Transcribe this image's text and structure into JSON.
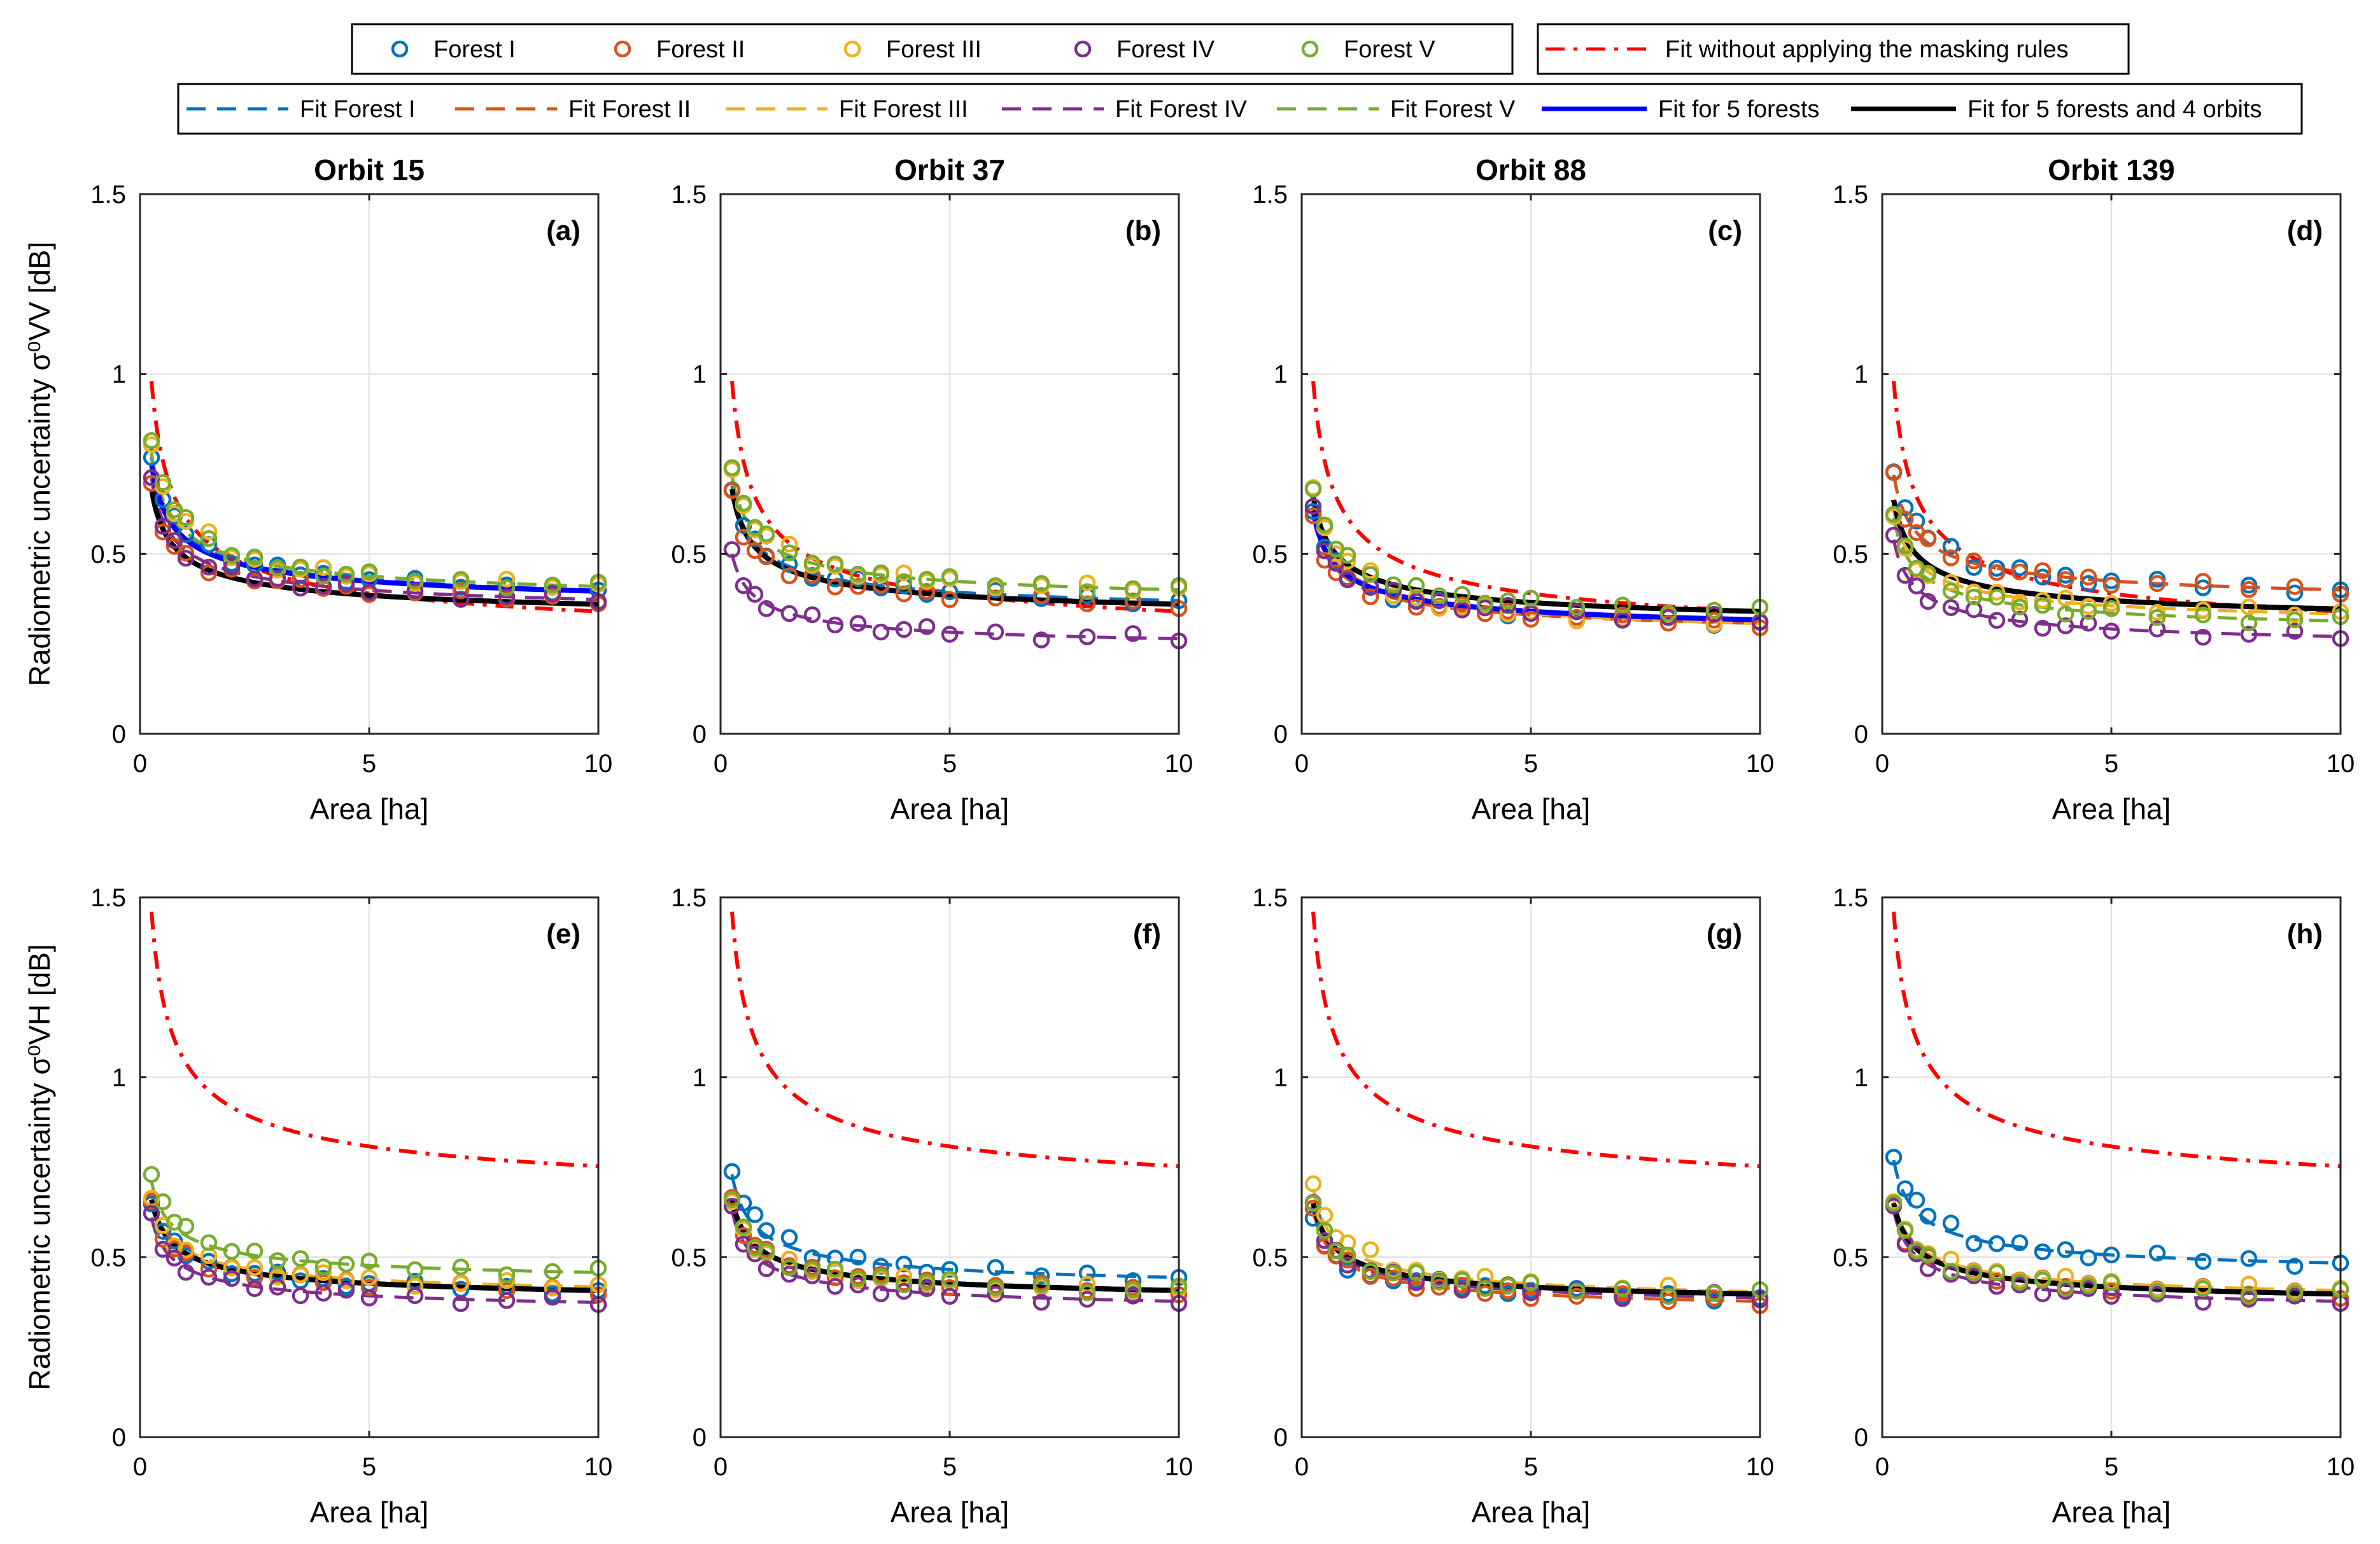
{
  "figure": {
    "legend_row1": [
      {
        "label": "Forest I",
        "kind": "marker",
        "color": "#0072BD"
      },
      {
        "label": "Forest II",
        "kind": "marker",
        "color": "#D95319"
      },
      {
        "label": "Forest III",
        "kind": "marker",
        "color": "#EDB120"
      },
      {
        "label": "Forest IV",
        "kind": "marker",
        "color": "#7E2F8E"
      },
      {
        "label": "Forest V",
        "kind": "marker",
        "color": "#77AC30"
      }
    ],
    "legend_row1b": [
      {
        "label": "Fit without applying the masking rules",
        "kind": "dashdot",
        "color": "#FF0000"
      }
    ],
    "legend_row2": [
      {
        "label": "Fit Forest I",
        "kind": "dash",
        "color": "#0072BD"
      },
      {
        "label": "Fit Forest II",
        "kind": "dash",
        "color": "#D95319"
      },
      {
        "label": "Fit Forest III",
        "kind": "dash",
        "color": "#EDB120"
      },
      {
        "label": "Fit Forest IV",
        "kind": "dash",
        "color": "#7E2F8E"
      },
      {
        "label": "Fit Forest V",
        "kind": "dash",
        "color": "#77AC30"
      },
      {
        "label": "Fit for 5 forests",
        "kind": "solid",
        "color": "#0000FF"
      },
      {
        "label": "Fit for 5 forests and 4 orbits",
        "kind": "solid",
        "color": "#000000"
      }
    ]
  },
  "chart_data": [
    {
      "type": "line",
      "panel_label": "(a)",
      "title": "Orbit 15",
      "xlabel": "Area [ha]",
      "ylabel": "Radiometric uncertainty  σ⁰VV [dB]",
      "xlim": [
        0,
        10
      ],
      "ylim": [
        0,
        1.5
      ],
      "xticks": [
        "0",
        "5",
        "10"
      ],
      "yticks": [
        "0",
        "0.5",
        "1",
        "1.5"
      ],
      "grid": true,
      "fits": {
        "nomask": [
          0.38,
          0.22
        ],
        "f1": [
          0.22,
          0.33
        ],
        "f2": [
          0.2,
          0.31
        ],
        "f3": [
          0.22,
          0.34
        ],
        "f4": [
          0.2,
          0.31
        ],
        "f5": [
          0.22,
          0.34
        ],
        "all5": [
          0.21,
          0.33
        ],
        "all": [
          0.19,
          0.3
        ]
      },
      "marker_offsets": {
        "f1": 0.01,
        "f2": -0.02,
        "f3": 0.03,
        "f4": -0.01,
        "f5": 0.035
      }
    },
    {
      "type": "line",
      "panel_label": "(b)",
      "title": "Orbit 37",
      "xlabel": "Area [ha]",
      "ylabel": "",
      "xlim": [
        0,
        10
      ],
      "ylim": [
        0,
        1.5
      ],
      "xticks": [
        "0",
        "5",
        "10"
      ],
      "yticks": [
        "0",
        "0.5",
        "1",
        "1.5"
      ],
      "grid": true,
      "fits": {
        "nomask": [
          0.38,
          0.22
        ],
        "f1": [
          0.19,
          0.31
        ],
        "f2": [
          0.19,
          0.3
        ],
        "f3": [
          0.19,
          0.34
        ],
        "f4": [
          0.14,
          0.22
        ],
        "f5": [
          0.19,
          0.34
        ],
        "all5": [
          0.19,
          0.3
        ],
        "all": [
          0.19,
          0.3
        ]
      },
      "marker_offsets": {
        "f1": 0.0,
        "f2": -0.01,
        "f3": 0.02,
        "f4": 0.0,
        "f5": 0.02
      }
    },
    {
      "type": "line",
      "panel_label": "(c)",
      "title": "Orbit 88",
      "xlabel": "Area [ha]",
      "ylabel": "",
      "xlim": [
        0,
        10
      ],
      "ylim": [
        0,
        1.5
      ],
      "xticks": [
        "0",
        "5",
        "10"
      ],
      "yticks": [
        "0",
        "0.5",
        "1",
        "1.5"
      ],
      "grid": true,
      "fits": {
        "nomask": [
          0.38,
          0.22
        ],
        "f1": [
          0.19,
          0.25
        ],
        "f2": [
          0.18,
          0.25
        ],
        "f3": [
          0.21,
          0.24
        ],
        "f4": [
          0.18,
          0.26
        ],
        "f5": [
          0.19,
          0.28
        ],
        "all5": [
          0.18,
          0.26
        ],
        "all": [
          0.19,
          0.28
        ]
      },
      "marker_offsets": {
        "f1": 0.0,
        "f2": -0.01,
        "f3": 0.03,
        "f4": 0.0,
        "f5": 0.02
      }
    },
    {
      "type": "line",
      "panel_label": "(d)",
      "title": "Orbit 139",
      "xlabel": "Area [ha]",
      "ylabel": "",
      "xlim": [
        0,
        10
      ],
      "ylim": [
        0,
        1.5
      ],
      "xticks": [
        "0",
        "5",
        "10"
      ],
      "yticks": [
        "0",
        "0.5",
        "1",
        "1.5"
      ],
      "grid": true,
      "fits": {
        "nomask": [
          0.38,
          0.22
        ],
        "f1": [
          0.19,
          0.34
        ],
        "f2": [
          0.19,
          0.34
        ],
        "f3": [
          0.17,
          0.28
        ],
        "f4": [
          0.16,
          0.22
        ],
        "f5": [
          0.17,
          0.26
        ],
        "all5": [
          0.18,
          0.29
        ],
        "all": [
          0.18,
          0.29
        ]
      },
      "marker_offsets": {
        "f1": 0.02,
        "f2": 0.0,
        "f3": -0.01,
        "f4": 0.0,
        "f5": 0.01
      }
    },
    {
      "type": "line",
      "panel_label": "(e)",
      "title": "",
      "xlabel": "Area [ha]",
      "ylabel": "Radiometric uncertainty  σ⁰VH [dB]",
      "xlim": [
        0,
        10
      ],
      "ylim": [
        0,
        1.5
      ],
      "xticks": [
        "0",
        "5",
        "10"
      ],
      "yticks": [
        "0",
        "0.5",
        "1",
        "1.5"
      ],
      "grid": true,
      "fits": {
        "nomask": [
          0.42,
          0.62
        ],
        "f1": [
          0.15,
          0.36
        ],
        "f2": [
          0.15,
          0.36
        ],
        "f3": [
          0.15,
          0.37
        ],
        "f4": [
          0.14,
          0.33
        ],
        "f5": [
          0.15,
          0.41
        ],
        "all5": [
          0.15,
          0.36
        ],
        "all": [
          0.15,
          0.36
        ]
      },
      "marker_offsets": {
        "f1": 0.0,
        "f2": -0.01,
        "f3": 0.0,
        "f4": 0.0,
        "f5": 0.02
      }
    },
    {
      "type": "line",
      "panel_label": "(f)",
      "title": "",
      "xlabel": "Area [ha]",
      "ylabel": "",
      "xlim": [
        0,
        10
      ],
      "ylim": [
        0,
        1.5
      ],
      "xticks": [
        "0",
        "5",
        "10"
      ],
      "yticks": [
        "0",
        "0.5",
        "1",
        "1.5"
      ],
      "grid": true,
      "fits": {
        "nomask": [
          0.42,
          0.62
        ],
        "f1": [
          0.17,
          0.39
        ],
        "f2": [
          0.15,
          0.36
        ],
        "f3": [
          0.15,
          0.36
        ],
        "f4": [
          0.15,
          0.33
        ],
        "f5": [
          0.15,
          0.36
        ],
        "all5": [
          0.15,
          0.36
        ],
        "all": [
          0.15,
          0.36
        ]
      },
      "marker_offsets": {
        "f1": 0.02,
        "f2": 0.0,
        "f3": 0.0,
        "f4": 0.0,
        "f5": 0.0
      }
    },
    {
      "type": "line",
      "panel_label": "(g)",
      "title": "",
      "xlabel": "Area [ha]",
      "ylabel": "",
      "xlim": [
        0,
        10
      ],
      "ylim": [
        0,
        1.5
      ],
      "xticks": [
        "0",
        "5",
        "10"
      ],
      "yticks": [
        "0",
        "0.5",
        "1",
        "1.5"
      ],
      "grid": true,
      "fits": {
        "nomask": [
          0.42,
          0.62
        ],
        "f1": [
          0.15,
          0.34
        ],
        "f2": [
          0.15,
          0.33
        ],
        "f3": [
          0.17,
          0.35
        ],
        "f4": [
          0.15,
          0.34
        ],
        "f5": [
          0.15,
          0.35
        ],
        "all5": [
          0.15,
          0.35
        ],
        "all": [
          0.15,
          0.35
        ]
      },
      "marker_offsets": {
        "f1": -0.02,
        "f2": 0.0,
        "f3": 0.02,
        "f4": 0.0,
        "f5": 0.0
      }
    },
    {
      "type": "line",
      "panel_label": "(h)",
      "title": "",
      "xlabel": "Area [ha]",
      "ylabel": "",
      "xlim": [
        0,
        10
      ],
      "ylim": [
        0,
        1.5
      ],
      "xticks": [
        "0",
        "5",
        "10"
      ],
      "yticks": [
        "0",
        "0.5",
        "1",
        "1.5"
      ],
      "grid": true,
      "fits": {
        "nomask": [
          0.42,
          0.62
        ],
        "f1": [
          0.17,
          0.43
        ],
        "f2": [
          0.15,
          0.35
        ],
        "f3": [
          0.15,
          0.36
        ],
        "f4": [
          0.15,
          0.33
        ],
        "f5": [
          0.15,
          0.35
        ],
        "all5": [
          0.15,
          0.35
        ],
        "all": [
          0.15,
          0.35
        ]
      },
      "marker_offsets": {
        "f1": 0.02,
        "f2": -0.01,
        "f3": 0.0,
        "f4": 0.0,
        "f5": 0.0
      }
    }
  ],
  "style": {
    "colors": {
      "f1": "#0072BD",
      "f2": "#D95319",
      "f3": "#EDB120",
      "f4": "#7E2F8E",
      "f5": "#77AC30",
      "nomask": "#FF0000",
      "all5": "#0000FF",
      "all": "#000000"
    },
    "marker_x": [
      0.25,
      0.5,
      0.75,
      1.0,
      1.5,
      2.0,
      2.5,
      3.0,
      3.5,
      4.0,
      4.5,
      5.0,
      6.0,
      7.0,
      8.0,
      9.0,
      10.0
    ]
  }
}
